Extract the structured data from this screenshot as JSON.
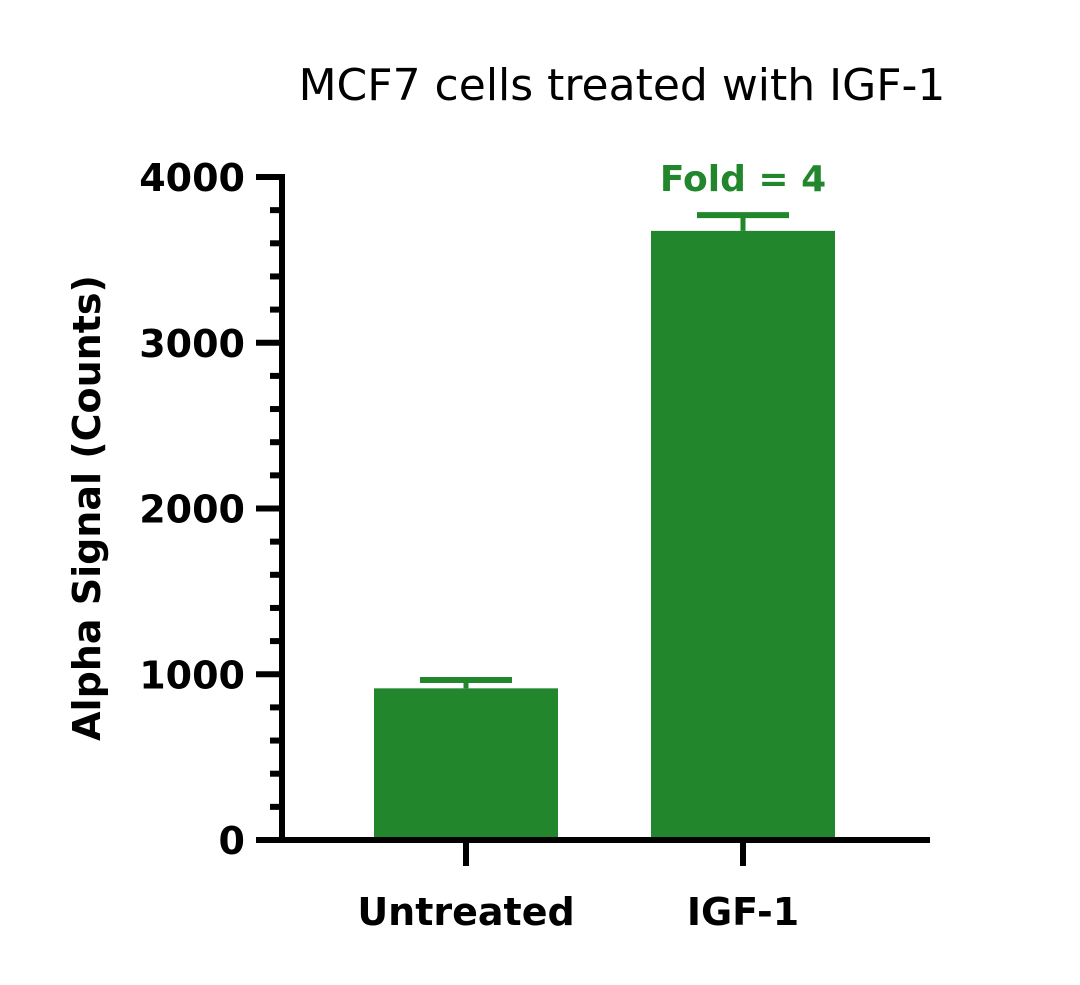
{
  "chart_data": {
    "type": "bar",
    "title": "MCF7 cells treated with IGF-1",
    "xlabel": "",
    "ylabel": "Alpha Signal (Counts)",
    "categories": [
      "Untreated",
      "IGF-1"
    ],
    "values": [
      915,
      3675
    ],
    "error_upper": [
      965,
      3770
    ],
    "ylim": [
      0,
      4000
    ],
    "yticks": [
      "0",
      "1000",
      "2000",
      "3000",
      "4000"
    ],
    "minor_tick_step": 200,
    "grid": false,
    "annotations": [
      {
        "category": "IGF-1",
        "text": "Fold = 4"
      }
    ],
    "colors": {
      "bar": "#21862c",
      "axis": "#000000",
      "annotation": "#21862c"
    }
  }
}
